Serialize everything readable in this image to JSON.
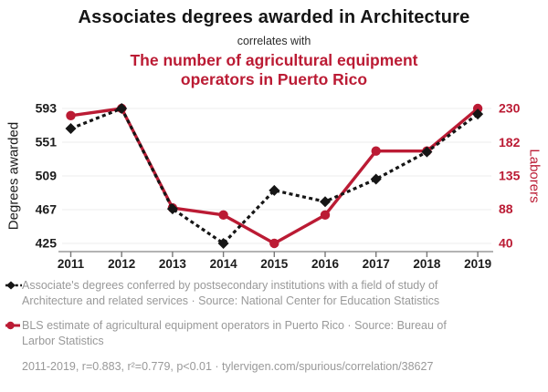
{
  "header": {
    "title": "Associates degrees awarded in Architecture",
    "connector": "correlates with",
    "subtitle": "The number of agricultural equipment operators in Puerto Rico"
  },
  "chart_data": {
    "type": "line",
    "x": [
      2011,
      2012,
      2013,
      2014,
      2015,
      2016,
      2017,
      2018,
      2019
    ],
    "series": [
      {
        "name": "Associates degrees awarded in Architecture",
        "axis": "left",
        "marker": "diamond",
        "line_style": "dashed",
        "color": "#161616",
        "values": [
          568,
          593,
          468,
          425,
          491,
          477,
          505,
          539,
          586
        ]
      },
      {
        "name": "Agricultural equipment operators in Puerto Rico",
        "axis": "right",
        "marker": "circle",
        "line_style": "solid",
        "color": "#bb1b34",
        "values": [
          220,
          230,
          90,
          80,
          40,
          80,
          170,
          170,
          230
        ]
      }
    ],
    "left_axis": {
      "label": "Degrees awarded",
      "ticks": [
        593,
        551,
        509,
        467,
        425
      ],
      "range": [
        425,
        593
      ]
    },
    "right_axis": {
      "label": "Laborers",
      "ticks": [
        230,
        182,
        135,
        88,
        40
      ],
      "range": [
        40,
        230
      ]
    },
    "grid": "horizontal",
    "legend_position": "bottom"
  },
  "legend": [
    {
      "text": "Associate's degrees conferred by postsecondary institutions with a field of study of Architecture and related services · Source: National Center for Education Statistics"
    },
    {
      "text": "BLS estimate of agricultural equipment operators in Puerto Rico · Source: Bureau of Larbor Statistics"
    }
  ],
  "footer": {
    "text": "2011-2019, r=0.883, r²=0.779, p<0.01 · tylervigen.com/spurious/correlation/38627"
  },
  "colors": {
    "accent_red": "#bb1b34",
    "series_black": "#161616",
    "tick_text": "#1c1c1c",
    "muted_text": "#999999",
    "gridline": "#f0f0f0",
    "axis_line": "#9a9a9a",
    "axis_tick": "#777777"
  }
}
